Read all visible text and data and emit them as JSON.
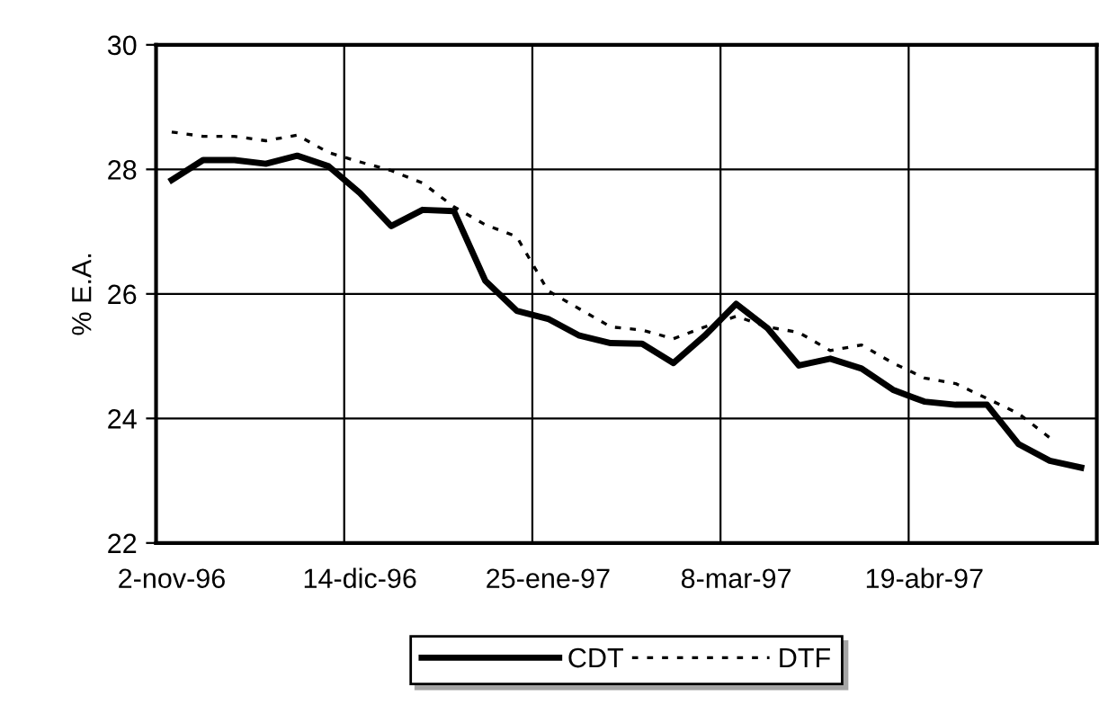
{
  "chart_data": {
    "type": "line",
    "ylabel": "% E.A.",
    "categories": [
      "2-nov-96",
      null,
      null,
      null,
      null,
      null,
      "14-dic-96",
      null,
      null,
      null,
      null,
      null,
      "25-ene-97",
      null,
      null,
      null,
      null,
      null,
      "8-mar-97",
      null,
      null,
      null,
      null,
      null,
      "19-abr-97",
      null,
      null,
      null,
      null,
      null
    ],
    "series": [
      {
        "name": "CDT",
        "color": "#000000",
        "line_style": "solid",
        "values": [
          27.83,
          28.15,
          28.15,
          28.09,
          28.22,
          28.05,
          27.62,
          27.09,
          27.35,
          27.33,
          26.21,
          25.73,
          25.6,
          25.33,
          25.21,
          25.2,
          24.89,
          25.33,
          25.84,
          25.45,
          24.85,
          24.96,
          24.8,
          24.46,
          24.27,
          24.22,
          24.22,
          23.59,
          23.32,
          23.21
        ]
      },
      {
        "name": "DTF",
        "color": "#000000",
        "line_style": "dotted",
        "values": [
          28.6,
          28.53,
          28.53,
          28.46,
          28.55,
          28.27,
          28.12,
          27.98,
          27.78,
          27.4,
          27.11,
          26.92,
          26.05,
          25.76,
          25.47,
          25.42,
          25.28,
          25.47,
          25.64,
          25.47,
          25.38,
          25.09,
          25.18,
          24.89,
          24.65,
          24.56,
          24.32,
          24.08,
          23.69,
          null
        ]
      }
    ],
    "ylim": [
      22,
      30
    ],
    "yticks": [
      22,
      24,
      26,
      28,
      30
    ],
    "grid": true,
    "legend": "bottom"
  }
}
